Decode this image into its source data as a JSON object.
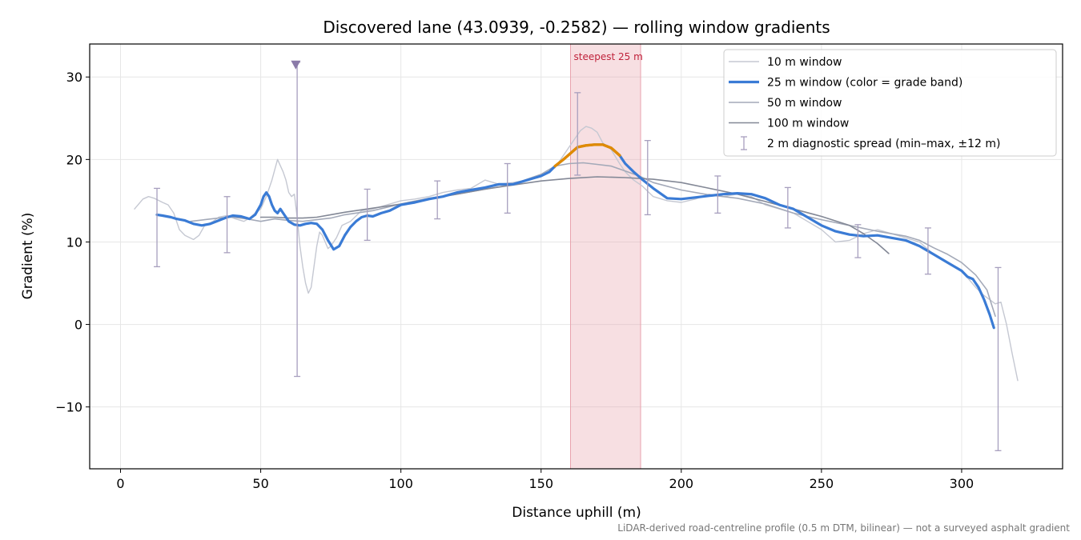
{
  "chart_data": {
    "type": "line",
    "title": "Discovered lane (43.0939, -0.2582) — rolling window gradients",
    "xlabel": "Distance uphill (m)",
    "ylabel": "Gradient (%)",
    "xlim": [
      -11,
      336
    ],
    "ylim": [
      -17.5,
      34
    ],
    "xticks": [
      0,
      50,
      100,
      150,
      200,
      250,
      300
    ],
    "yticks": [
      -10,
      0,
      10,
      20,
      30
    ],
    "xtick_labels": [
      "0",
      "50",
      "100",
      "150",
      "200",
      "250",
      "300"
    ],
    "ytick_labels": [
      "−10",
      "0",
      "10",
      "20",
      "30"
    ],
    "grid": true,
    "legend_position": "top-right",
    "footnote": "LiDAR-derived road-centreline profile (0.5 m DTM, bilinear) — not a surveyed asphalt gradient",
    "highlight": {
      "label": "steepest 25 m",
      "x_start": 160.5,
      "x_end": 185.5,
      "color": "#e8a3ad"
    },
    "outlier_marker": {
      "x": 62.5,
      "y": 31.5,
      "color": "#8a7aa8"
    },
    "series": [
      {
        "name": "10 m window",
        "color": "#c5c8d2",
        "width": 1.4,
        "x": [
          5,
          8,
          10,
          12,
          15,
          17,
          19,
          21,
          23,
          26,
          28,
          30,
          33,
          35,
          38,
          41,
          44,
          46,
          48,
          50,
          52,
          54,
          56,
          58,
          59,
          60,
          61,
          62,
          63,
          64,
          65,
          66,
          67,
          68,
          69,
          70,
          71,
          72,
          73,
          74,
          75,
          77,
          79,
          82,
          86,
          90,
          95,
          100,
          105,
          110,
          115,
          120,
          125,
          130,
          135,
          140,
          145,
          150,
          155,
          158,
          160,
          162,
          164,
          166,
          168,
          170,
          172,
          175,
          178,
          180,
          183,
          186,
          190,
          195,
          200,
          205,
          210,
          215,
          220,
          225,
          230,
          235,
          240,
          245,
          250,
          255,
          260,
          265,
          270,
          275,
          280,
          285,
          290,
          295,
          300,
          305,
          308,
          310,
          312,
          314,
          316,
          318,
          320
        ],
        "y": [
          14,
          15.2,
          15.5,
          15.3,
          14.8,
          14.5,
          13.5,
          11.5,
          10.8,
          10.3,
          10.8,
          12,
          12.5,
          13,
          13.2,
          12.8,
          12.5,
          12.9,
          13.5,
          14,
          15.5,
          17.5,
          20,
          18.5,
          17.5,
          16,
          15.5,
          15.8,
          13,
          9.5,
          7,
          5,
          3.8,
          4.5,
          7,
          9.5,
          11.2,
          10.8,
          10,
          9.2,
          9.5,
          10.5,
          12,
          12.5,
          13.8,
          14,
          14.5,
          15,
          15.2,
          15.5,
          16,
          16.3,
          16.5,
          17.5,
          17,
          17.2,
          17.5,
          18,
          19,
          20.5,
          21.5,
          22.5,
          23.5,
          24,
          23.8,
          23.3,
          22,
          21.2,
          19.5,
          18.5,
          17.5,
          16.8,
          15.5,
          15,
          14.8,
          15.2,
          15.8,
          15.5,
          15.8,
          15.5,
          14.5,
          14,
          13.5,
          12.5,
          11.5,
          10,
          10.2,
          11,
          11.5,
          11,
          10.5,
          10,
          8.5,
          7.5,
          6.5,
          4.5,
          3.5,
          3,
          2.5,
          2.7,
          0,
          -3.5,
          -6.8
        ]
      },
      {
        "name": "25 m window (color = grade band)",
        "color": "#3a7bd5",
        "width": 3.2,
        "x": [
          13,
          15,
          18,
          20,
          23,
          26,
          29,
          32,
          35,
          38,
          40,
          43,
          46,
          48,
          50,
          51,
          52,
          53,
          54,
          55,
          56,
          57,
          58,
          60,
          62,
          64,
          66,
          68,
          70,
          72,
          74,
          76,
          78,
          80,
          82,
          84,
          86,
          88,
          90,
          93,
          96,
          100,
          105,
          110,
          115,
          120,
          125,
          130,
          135,
          140,
          145,
          150,
          153,
          155,
          158,
          160,
          163,
          166,
          169,
          172,
          175,
          178,
          180,
          183,
          186,
          190,
          195,
          200,
          205,
          210,
          215,
          220,
          225,
          230,
          235,
          240,
          245,
          250,
          255,
          260,
          265,
          270,
          275,
          280,
          285,
          290,
          295,
          300,
          302,
          304,
          306,
          308,
          310,
          311.5
        ],
        "y": [
          13.3,
          13.2,
          13,
          12.8,
          12.6,
          12.2,
          12,
          12.2,
          12.6,
          13,
          13.2,
          13.1,
          12.8,
          13.3,
          14.5,
          15.5,
          16,
          15.5,
          14.5,
          13.8,
          13.5,
          14,
          13.5,
          12.5,
          12.1,
          12,
          12.2,
          12.3,
          12.2,
          11.5,
          10.2,
          9.1,
          9.5,
          10.8,
          11.8,
          12.5,
          13,
          13.2,
          13.1,
          13.5,
          13.8,
          14.5,
          14.8,
          15.2,
          15.5,
          16,
          16.3,
          16.6,
          17,
          17,
          17.5,
          18,
          18.5,
          19.2,
          20,
          20.6,
          21.5,
          21.7,
          21.8,
          21.8,
          21.4,
          20.5,
          19.5,
          18.5,
          17.6,
          16.5,
          15.3,
          15.2,
          15.4,
          15.6,
          15.8,
          15.9,
          15.8,
          15.3,
          14.5,
          14,
          13,
          12,
          11.3,
          10.9,
          10.7,
          10.8,
          10.5,
          10.2,
          9.5,
          8.5,
          7.5,
          6.5,
          5.8,
          5.5,
          4.5,
          3,
          1.2,
          -0.4
        ]
      },
      {
        "name": "50 m window",
        "color": "#a3a9b8",
        "width": 1.6,
        "x": [
          25,
          30,
          35,
          40,
          45,
          50,
          55,
          60,
          65,
          70,
          75,
          80,
          90,
          100,
          110,
          120,
          130,
          140,
          150,
          155,
          160,
          165,
          170,
          175,
          180,
          185,
          190,
          200,
          210,
          220,
          230,
          240,
          250,
          260,
          270,
          280,
          285,
          290,
          295,
          300,
          305,
          309,
          312
        ],
        "y": [
          12.5,
          12.7,
          12.9,
          13,
          12.8,
          12.5,
          12.8,
          12.6,
          12.5,
          12.7,
          12.9,
          13.3,
          13.8,
          14.6,
          15.3,
          15.8,
          16.4,
          17,
          18.2,
          19.2,
          19.5,
          19.6,
          19.4,
          19.2,
          18.6,
          18,
          17.2,
          16.3,
          15.7,
          15.3,
          14.6,
          13.5,
          12.7,
          12,
          11.3,
          10.7,
          10.2,
          9.3,
          8.5,
          7.5,
          6,
          4.2,
          1
        ]
      },
      {
        "name": "100 m window",
        "color": "#838896",
        "width": 1.6,
        "x": [
          50,
          55,
          60,
          65,
          70,
          75,
          80,
          90,
          100,
          110,
          120,
          130,
          140,
          150,
          160,
          170,
          180,
          190,
          200,
          210,
          220,
          230,
          240,
          250,
          260,
          265,
          270,
          274
        ],
        "y": [
          13,
          13,
          12.9,
          12.9,
          13,
          13.3,
          13.6,
          14.1,
          14.6,
          15.2,
          15.8,
          16.4,
          16.9,
          17.4,
          17.7,
          17.9,
          17.8,
          17.6,
          17.2,
          16.5,
          15.8,
          14.9,
          14,
          13.1,
          12,
          11,
          9.8,
          8.6
        ]
      }
    ],
    "highlight_segment": {
      "color": "#e08a00",
      "x_start": 155,
      "x_end": 178
    },
    "errorbars": {
      "name": "2 m diagnostic spread (min–max, ±12 m)",
      "color": "#a79fbe",
      "points": [
        {
          "x": 13,
          "lo": 7,
          "hi": 16.5
        },
        {
          "x": 38,
          "lo": 8.7,
          "hi": 15.5
        },
        {
          "x": 63,
          "lo": -6.3,
          "hi": 31.8
        },
        {
          "x": 88,
          "lo": 10.2,
          "hi": 16.4
        },
        {
          "x": 113,
          "lo": 12.8,
          "hi": 17.4
        },
        {
          "x": 138,
          "lo": 13.5,
          "hi": 19.5
        },
        {
          "x": 163,
          "lo": 18.1,
          "hi": 28.1
        },
        {
          "x": 188,
          "lo": 13.3,
          "hi": 22.3
        },
        {
          "x": 213,
          "lo": 13.5,
          "hi": 18
        },
        {
          "x": 238,
          "lo": 11.7,
          "hi": 16.6
        },
        {
          "x": 263,
          "lo": 8.1,
          "hi": 12.1
        },
        {
          "x": 288,
          "lo": 6.1,
          "hi": 11.7
        },
        {
          "x": 313,
          "lo": -15.3,
          "hi": 6.9
        }
      ]
    }
  }
}
